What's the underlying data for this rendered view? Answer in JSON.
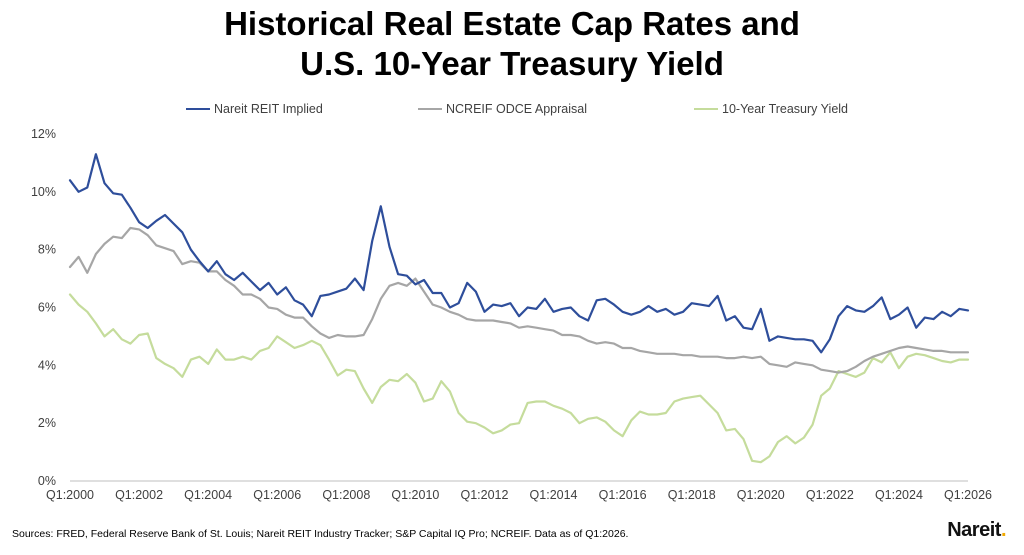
{
  "header": {
    "title_line1": "Historical Real Estate Cap Rates and",
    "title_line2": "U.S. 10-Year Treasury Yield"
  },
  "footer": {
    "sources": "Sources: FRED, Federal Reserve Bank of St. Louis; Nareit REIT Industry Tracker; S&P Capital IQ Pro; NCREIF. Data as of Q1:2026.",
    "logo": "Nareit",
    "logo_dot": "."
  },
  "colors": {
    "reit": "#2e4e9b",
    "ncreif": "#a6a6a6",
    "treasury": "#c5dc9c",
    "logo_accent": "#f2a900"
  },
  "chart_data": {
    "type": "line",
    "xlabel": "",
    "ylabel": "",
    "ylim": [
      0,
      12
    ],
    "y_ticks": [
      "0%",
      "2%",
      "4%",
      "6%",
      "8%",
      "10%",
      "12%"
    ],
    "x_tick_labels": [
      "Q1:2000",
      "Q1:2002",
      "Q1:2004",
      "Q1:2006",
      "Q1:2008",
      "Q1:2010",
      "Q1:2012",
      "Q1:2014",
      "Q1:2016",
      "Q1:2018",
      "Q1:2020",
      "Q1:2022",
      "Q1:2024",
      "Q1:2026"
    ],
    "x_start": "Q1:2000",
    "x_end": "Q1:2026",
    "grid": false,
    "legend_position": "top",
    "series": [
      {
        "name": "Nareit REIT Implied",
        "color": "#2e4e9b",
        "values": [
          10.4,
          10.0,
          10.15,
          11.3,
          10.3,
          9.95,
          9.9,
          9.45,
          8.95,
          8.75,
          9.0,
          9.2,
          8.9,
          8.6,
          8.0,
          7.6,
          7.25,
          7.6,
          7.15,
          6.95,
          7.2,
          6.9,
          6.6,
          6.85,
          6.45,
          6.7,
          6.25,
          6.1,
          5.7,
          6.4,
          6.45,
          6.55,
          6.65,
          7.0,
          6.6,
          8.3,
          9.5,
          8.1,
          7.15,
          7.1,
          6.8,
          6.95,
          6.5,
          6.5,
          6.0,
          6.15,
          6.85,
          6.55,
          5.85,
          6.1,
          6.05,
          6.15,
          5.7,
          6.0,
          5.95,
          6.3,
          5.85,
          5.95,
          6.0,
          5.7,
          5.55,
          6.25,
          6.3,
          6.1,
          5.85,
          5.75,
          5.85,
          6.05,
          5.85,
          5.95,
          5.75,
          5.85,
          6.15,
          6.1,
          6.05,
          6.4,
          5.55,
          5.7,
          5.3,
          5.25,
          5.95,
          4.85,
          5.0,
          4.95,
          4.9,
          4.9,
          4.85,
          4.45,
          4.9,
          5.7,
          6.05,
          5.9,
          5.85,
          6.05,
          6.35,
          5.6,
          5.75,
          6.0,
          5.3,
          5.65,
          5.6,
          5.85,
          5.7,
          5.95,
          5.9
        ]
      },
      {
        "name": "NCREIF ODCE Appraisal",
        "color": "#a6a6a6",
        "values": [
          7.4,
          7.75,
          7.2,
          7.85,
          8.2,
          8.45,
          8.4,
          8.75,
          8.7,
          8.5,
          8.15,
          8.05,
          7.95,
          7.5,
          7.6,
          7.55,
          7.25,
          7.25,
          6.95,
          6.75,
          6.45,
          6.45,
          6.3,
          6.0,
          5.95,
          5.75,
          5.65,
          5.65,
          5.35,
          5.1,
          4.95,
          5.05,
          5.0,
          5.0,
          5.05,
          5.6,
          6.3,
          6.75,
          6.85,
          6.75,
          7.0,
          6.55,
          6.1,
          6.0,
          5.85,
          5.75,
          5.6,
          5.55,
          5.55,
          5.55,
          5.5,
          5.45,
          5.3,
          5.35,
          5.3,
          5.25,
          5.2,
          5.05,
          5.05,
          5.0,
          4.85,
          4.75,
          4.8,
          4.75,
          4.6,
          4.6,
          4.5,
          4.45,
          4.4,
          4.4,
          4.4,
          4.35,
          4.35,
          4.3,
          4.3,
          4.3,
          4.25,
          4.25,
          4.3,
          4.25,
          4.3,
          4.05,
          4.0,
          3.95,
          4.1,
          4.05,
          4.0,
          3.85,
          3.8,
          3.75,
          3.8,
          3.95,
          4.15,
          4.3,
          4.4,
          4.5,
          4.6,
          4.65,
          4.6,
          4.55,
          4.5,
          4.5,
          4.45,
          4.45,
          4.45
        ]
      },
      {
        "name": "10-Year Treasury Yield",
        "color": "#c5dc9c",
        "values": [
          6.45,
          6.1,
          5.85,
          5.45,
          5.0,
          5.25,
          4.9,
          4.75,
          5.05,
          5.1,
          4.25,
          4.05,
          3.9,
          3.6,
          4.2,
          4.3,
          4.05,
          4.55,
          4.2,
          4.2,
          4.3,
          4.2,
          4.5,
          4.6,
          5.0,
          4.8,
          4.6,
          4.7,
          4.85,
          4.7,
          4.2,
          3.65,
          3.85,
          3.8,
          3.2,
          2.7,
          3.25,
          3.5,
          3.45,
          3.7,
          3.4,
          2.75,
          2.85,
          3.45,
          3.1,
          2.35,
          2.05,
          2.0,
          1.85,
          1.65,
          1.75,
          1.95,
          2.0,
          2.7,
          2.75,
          2.75,
          2.6,
          2.5,
          2.35,
          2.0,
          2.15,
          2.2,
          2.05,
          1.75,
          1.55,
          2.1,
          2.4,
          2.3,
          2.3,
          2.35,
          2.75,
          2.85,
          2.9,
          2.95,
          2.65,
          2.35,
          1.75,
          1.8,
          1.45,
          0.7,
          0.65,
          0.85,
          1.35,
          1.55,
          1.3,
          1.5,
          1.95,
          2.95,
          3.2,
          3.8,
          3.7,
          3.6,
          3.75,
          4.25,
          4.1,
          4.45,
          3.9,
          4.3,
          4.4,
          4.35,
          4.25,
          4.15,
          4.1,
          4.2,
          4.2
        ]
      }
    ]
  }
}
